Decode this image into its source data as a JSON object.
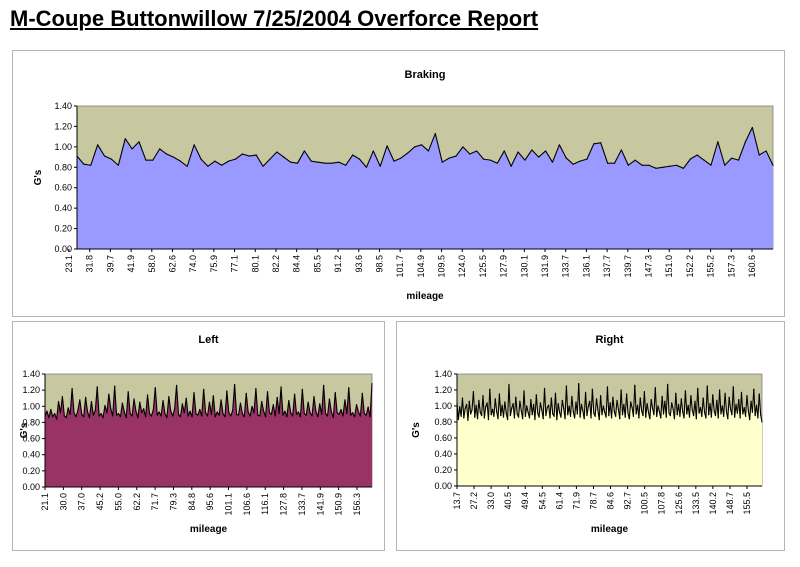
{
  "report": {
    "title": "M-Coupe Buttonwillow 7/25/2004 Overforce Report"
  },
  "colors": {
    "plot_bg": "#C8C8A0",
    "braking_fill": "#9999FF",
    "left_fill": "#993366",
    "right_fill": "#FFFFCC",
    "line": "#000000"
  },
  "chart_data": [
    {
      "type": "area",
      "title": "Braking",
      "xlabel": "mileage",
      "ylabel": "G's",
      "ylim": [
        0,
        1.4
      ],
      "yticks": [
        "0.00",
        "0.20",
        "0.40",
        "0.60",
        "0.80",
        "1.00",
        "1.20",
        "1.40"
      ],
      "xticks": [
        "23.1",
        "31.8",
        "39.7",
        "41.9",
        "58.0",
        "62.6",
        "74.0",
        "75.9",
        "77.1",
        "80.1",
        "82.2",
        "84.4",
        "85.5",
        "91.2",
        "93.6",
        "98.5",
        "101.7",
        "104.9",
        "109.5",
        "124.0",
        "125.5",
        "127.9",
        "130.1",
        "131.9",
        "133.7",
        "136.1",
        "137.7",
        "139.7",
        "147.3",
        "151.0",
        "152.2",
        "155.2",
        "157.3",
        "160.6"
      ],
      "grid": false,
      "legend": "none",
      "values": [
        0.91,
        0.83,
        0.82,
        1.02,
        0.91,
        0.88,
        0.82,
        1.08,
        0.98,
        1.05,
        0.87,
        0.87,
        0.98,
        0.93,
        0.9,
        0.86,
        0.81,
        1.02,
        0.88,
        0.81,
        0.86,
        0.82,
        0.86,
        0.88,
        0.93,
        0.91,
        0.92,
        0.81,
        0.88,
        0.95,
        0.9,
        0.85,
        0.84,
        0.96,
        0.86,
        0.85,
        0.84,
        0.84,
        0.85,
        0.82,
        0.92,
        0.88,
        0.8,
        0.96,
        0.81,
        1.01,
        0.86,
        0.89,
        0.94,
        1.0,
        1.02,
        0.96,
        1.13,
        0.85,
        0.89,
        0.91,
        1.0,
        0.93,
        0.96,
        0.88,
        0.87,
        0.84,
        0.96,
        0.81,
        0.95,
        0.87,
        0.97,
        0.9,
        0.96,
        0.85,
        1.02,
        0.89,
        0.83,
        0.86,
        0.88,
        1.03,
        1.04,
        0.84,
        0.84,
        0.97,
        0.82,
        0.87,
        0.82,
        0.82,
        0.79,
        0.8,
        0.81,
        0.82,
        0.79,
        0.88,
        0.92,
        0.87,
        0.82,
        1.05,
        0.82,
        0.89,
        0.87,
        1.05,
        1.19,
        0.92,
        0.96,
        0.82
      ]
    },
    {
      "type": "area",
      "title": "Left",
      "xlabel": "mileage",
      "ylabel": "G's",
      "ylim": [
        0,
        1.4
      ],
      "yticks": [
        "0.00",
        "0.20",
        "0.40",
        "0.60",
        "0.80",
        "1.00",
        "1.20",
        "1.40"
      ],
      "xticks": [
        "21.1",
        "30.0",
        "37.0",
        "45.2",
        "55.0",
        "62.2",
        "71.7",
        "79.3",
        "84.8",
        "95.6",
        "101.1",
        "106.6",
        "116.1",
        "127.8",
        "133.7",
        "141.9",
        "150.9",
        "156.3"
      ],
      "grid": false,
      "legend": "none",
      "values": [
        0.88,
        0.94,
        0.86,
        0.96,
        0.87,
        0.91,
        0.84,
        1.06,
        0.92,
        1.12,
        0.88,
        0.86,
        0.98,
        0.9,
        1.22,
        0.92,
        0.87,
        0.95,
        1.08,
        0.9,
        0.87,
        1.11,
        0.93,
        0.86,
        1.06,
        0.89,
        0.95,
        1.24,
        0.88,
        0.91,
        0.86,
        1.01,
        0.92,
        1.15,
        0.97,
        0.88,
        1.25,
        0.89,
        0.91,
        0.87,
        1.04,
        0.93,
        0.86,
        1.18,
        0.91,
        0.88,
        1.09,
        0.94,
        0.86,
        1.05,
        0.92,
        0.97,
        0.87,
        1.14,
        0.91,
        0.88,
        0.96,
        1.23,
        0.89,
        0.93,
        0.88,
        1.07,
        0.91,
        0.86,
        1.12,
        0.94,
        0.88,
        0.97,
        1.26,
        0.9,
        0.87,
        1.03,
        0.92,
        1.1,
        0.88,
        0.94,
        0.87,
        1.17,
        0.91,
        0.89,
        0.96,
        0.88,
        1.21,
        0.92,
        0.88,
        1.05,
        0.9,
        1.13,
        0.87,
        0.93,
        0.89,
        1.08,
        0.91,
        0.87,
        1.19,
        0.92,
        0.88,
        0.95,
        1.27,
        0.9,
        0.89,
        1.04,
        0.91,
        0.87,
        1.16,
        0.93,
        0.88,
        1.0,
        0.92,
        1.22,
        0.89,
        0.88,
        1.06,
        0.94,
        0.87,
        1.18,
        0.92,
        0.9,
        1.02,
        0.88,
        1.11,
        0.91,
        1.24,
        0.89,
        0.94,
        0.87,
        1.07,
        0.92,
        0.88,
        1.15,
        0.9,
        0.93,
        0.87,
        1.21,
        0.91,
        0.89,
        1.05,
        0.92,
        0.88,
        1.12,
        0.94,
        0.87,
        1.03,
        0.9,
        1.26,
        0.91,
        0.88,
        1.09,
        0.93,
        0.86,
        1.17,
        0.92,
        0.9,
        0.96,
        0.88,
        1.08,
        0.91,
        1.23,
        0.89,
        0.92,
        0.87,
        1.02,
        0.93,
        0.88,
        1.16,
        0.91,
        0.89,
        0.99,
        0.87,
        1.28
      ]
    },
    {
      "type": "area",
      "title": "Right",
      "xlabel": "mileage",
      "ylabel": "G's",
      "ylim": [
        0,
        1.4
      ],
      "yticks": [
        "0.00",
        "0.20",
        "0.40",
        "0.60",
        "0.80",
        "1.00",
        "1.20",
        "1.40"
      ],
      "xticks": [
        "13.7",
        "27.2",
        "33.0",
        "40.5",
        "49.4",
        "54.5",
        "61.4",
        "71.9",
        "78.7",
        "84.6",
        "92.7",
        "100.5",
        "107.8",
        "125.6",
        "133.5",
        "140.2",
        "148.7",
        "155.5"
      ],
      "grid": false,
      "legend": "none",
      "values": [
        1.03,
        0.83,
        0.99,
        0.87,
        1.1,
        0.85,
        0.97,
        1.02,
        0.82,
        1.06,
        0.9,
        0.95,
        1.18,
        0.86,
        1.01,
        0.84,
        1.07,
        0.92,
        0.88,
        1.13,
        0.85,
        0.99,
        1.04,
        0.83,
        1.21,
        0.89,
        0.96,
        0.87,
        1.09,
        0.93,
        0.84,
        1.15,
        0.88,
        1.01,
        0.86,
        1.05,
        0.91,
        0.83,
        1.27,
        0.88,
        0.97,
        1.03,
        0.85,
        1.11,
        0.9,
        0.86,
        1.06,
        0.94,
        0.84,
        1.19,
        0.87,
        1.0,
        0.92,
        0.85,
        1.08,
        0.89,
        1.02,
        0.83,
        1.14,
        0.91,
        0.86,
        1.04,
        0.95,
        0.84,
        1.22,
        0.88,
        0.98,
        1.01,
        0.85,
        1.1,
        0.9,
        0.87,
        1.16,
        0.83,
        1.03,
        0.92,
        0.86,
        1.07,
        0.97,
        0.84,
        1.25,
        0.89,
        1.0,
        0.87,
        1.12,
        0.93,
        0.85,
        1.05,
        0.9,
        1.28,
        0.86,
        1.02,
        0.94,
        0.84,
        1.17,
        0.88,
        0.99,
        1.06,
        0.85,
        1.21,
        0.91,
        0.87,
        1.09,
        0.95,
        0.83,
        1.13,
        0.89,
        1.0,
        0.92,
        0.86,
        1.24,
        0.88,
        1.04,
        0.85,
        1.11,
        0.93,
        0.87,
        1.07,
        0.96,
        0.84,
        1.2,
        0.89,
        1.02,
        0.86,
        1.15,
        0.91,
        0.84,
        1.05,
        0.98,
        0.87,
        1.26,
        0.9,
        1.01,
        0.85,
        1.1,
        0.94,
        0.88,
        1.18,
        0.86,
        1.03,
        0.92,
        0.84,
        1.08,
        0.97,
        0.89,
        1.23,
        0.87,
        1.0,
        0.93,
        0.85,
        1.12,
        0.9,
        1.06,
        0.86,
        1.27,
        0.91,
        0.88,
        1.04,
        0.96,
        0.84,
        1.16,
        0.89,
        1.02,
        0.87,
        1.09,
        0.93,
        0.85,
        1.19,
        0.9,
        1.01,
        0.86,
        1.13,
        0.95,
        0.88,
        1.06,
        0.84,
        1.22,
        0.91,
        0.98,
        0.87,
        1.1,
        0.92,
        0.85,
        1.25,
        0.89,
        1.03,
        0.86,
        1.14,
        0.94,
        0.88,
        1.07,
        0.85,
        1.2,
        0.9,
        1.0,
        0.87,
        1.16,
        0.93,
        0.84,
        1.11,
        0.96,
        0.89,
        1.24,
        0.86,
        1.02,
        0.91,
        1.08,
        0.85,
        1.17,
        0.9,
        0.98,
        0.87,
        1.13,
        0.94,
        0.83,
        1.06,
        0.92,
        1.21,
        0.88,
        1.01,
        0.85,
        1.15,
        0.89,
        0.8
      ]
    }
  ]
}
